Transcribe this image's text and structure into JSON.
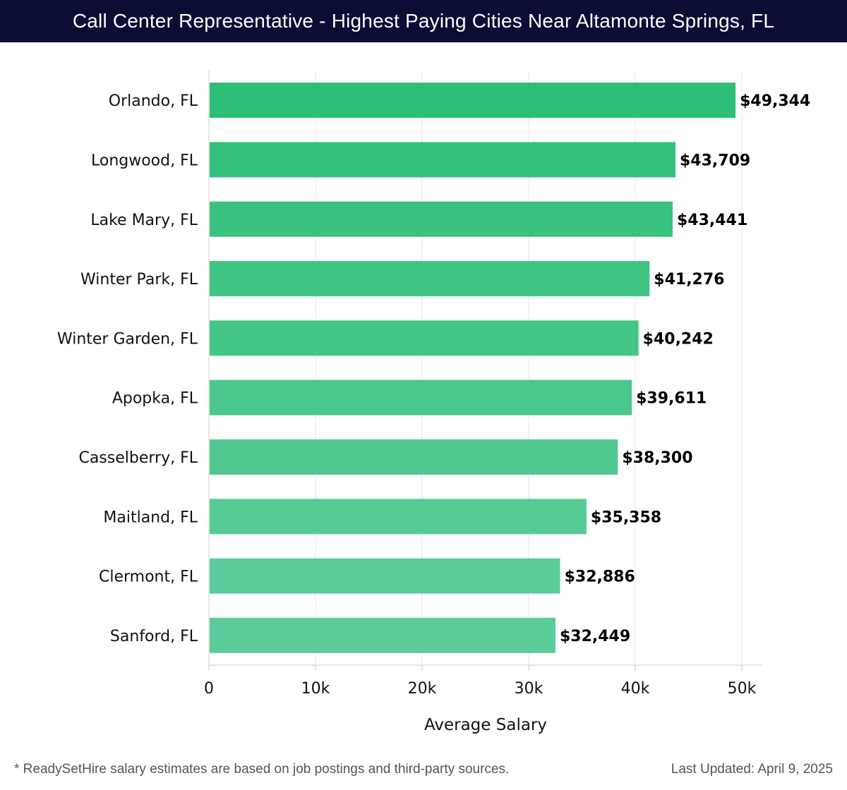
{
  "header": {
    "title": "Call Center Representative - Highest Paying Cities Near Altamonte Springs, FL"
  },
  "chart_data": {
    "type": "bar",
    "orientation": "horizontal",
    "categories": [
      "Orlando, FL",
      "Longwood, FL",
      "Lake Mary, FL",
      "Winter Park, FL",
      "Winter Garden, FL",
      "Apopka, FL",
      "Casselberry, FL",
      "Maitland, FL",
      "Clermont, FL",
      "Sanford, FL"
    ],
    "values": [
      49344,
      43709,
      43441,
      41276,
      40242,
      39611,
      38300,
      35358,
      32886,
      32449
    ],
    "value_labels": [
      "$49,344",
      "$43,709",
      "$43,441",
      "$41,276",
      "$40,242",
      "$39,611",
      "$38,300",
      "$35,358",
      "$32,886",
      "$32,449"
    ],
    "xlabel": "Average Salary",
    "ylabel": "",
    "xlim": [
      0,
      52000
    ],
    "x_ticks": [
      0,
      10000,
      20000,
      30000,
      40000,
      50000
    ],
    "x_tick_labels": [
      "0",
      "10k",
      "20k",
      "30k",
      "40k",
      "50k"
    ],
    "grid": true,
    "colors": {
      "bar_top": "#2dbe77",
      "bar_bottom": "#5ccd9a"
    }
  },
  "footer": {
    "note": "* ReadySetHire salary estimates are based on job postings and third-party sources.",
    "updated": "Last Updated: April 9, 2025"
  }
}
